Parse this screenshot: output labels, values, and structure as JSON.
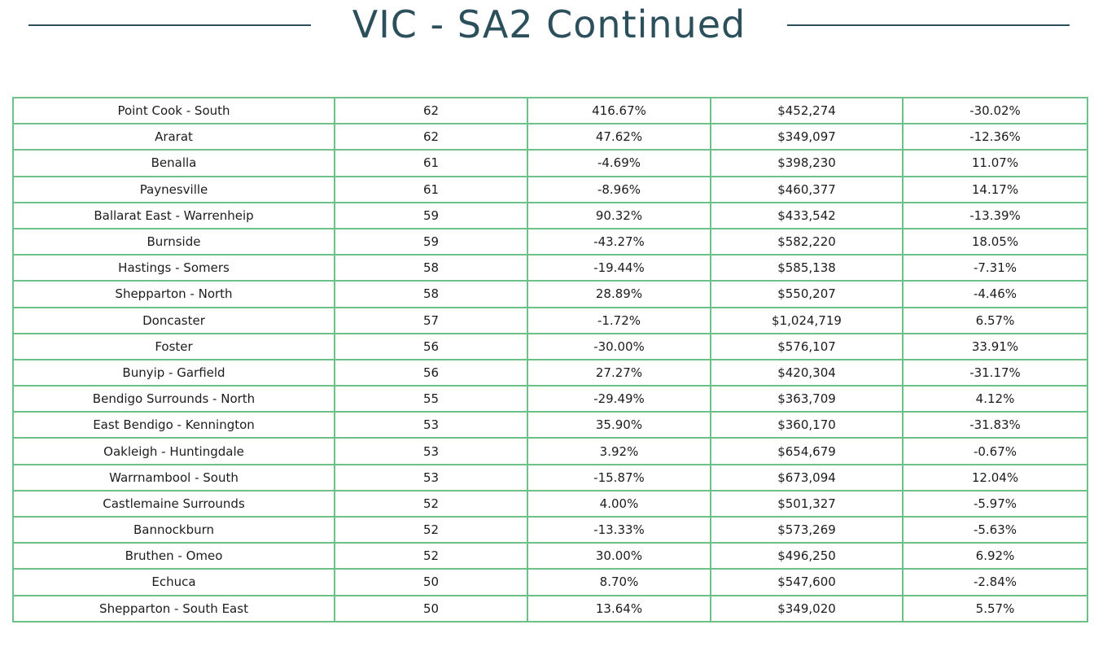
{
  "header": {
    "title": "VIC - SA2 Continued"
  },
  "table": {
    "rows": [
      [
        "Point Cook - South",
        "62",
        "416.67%",
        "$452,274",
        "-30.02%"
      ],
      [
        "Ararat",
        "62",
        "47.62%",
        "$349,097",
        "-12.36%"
      ],
      [
        "Benalla",
        "61",
        "-4.69%",
        "$398,230",
        "11.07%"
      ],
      [
        "Paynesville",
        "61",
        "-8.96%",
        "$460,377",
        "14.17%"
      ],
      [
        "Ballarat East - Warrenheip",
        "59",
        "90.32%",
        "$433,542",
        "-13.39%"
      ],
      [
        "Burnside",
        "59",
        "-43.27%",
        "$582,220",
        "18.05%"
      ],
      [
        "Hastings - Somers",
        "58",
        "-19.44%",
        "$585,138",
        "-7.31%"
      ],
      [
        "Shepparton - North",
        "58",
        "28.89%",
        "$550,207",
        "-4.46%"
      ],
      [
        "Doncaster",
        "57",
        "-1.72%",
        "$1,024,719",
        "6.57%"
      ],
      [
        "Foster",
        "56",
        "-30.00%",
        "$576,107",
        "33.91%"
      ],
      [
        "Bunyip - Garfield",
        "56",
        "27.27%",
        "$420,304",
        "-31.17%"
      ],
      [
        "Bendigo Surrounds - North",
        "55",
        "-29.49%",
        "$363,709",
        "4.12%"
      ],
      [
        "East Bendigo - Kennington",
        "53",
        "35.90%",
        "$360,170",
        "-31.83%"
      ],
      [
        "Oakleigh - Huntingdale",
        "53",
        "3.92%",
        "$654,679",
        "-0.67%"
      ],
      [
        "Warrnambool - South",
        "53",
        "-15.87%",
        "$673,094",
        "12.04%"
      ],
      [
        "Castlemaine Surrounds",
        "52",
        "4.00%",
        "$501,327",
        "-5.97%"
      ],
      [
        "Bannockburn",
        "52",
        "-13.33%",
        "$573,269",
        "-5.63%"
      ],
      [
        "Bruthen - Omeo",
        "52",
        "30.00%",
        "$496,250",
        "6.92%"
      ],
      [
        "Echuca",
        "50",
        "8.70%",
        "$547,600",
        "-2.84%"
      ],
      [
        "Shepparton - South East",
        "50",
        "13.64%",
        "$349,020",
        "5.57%"
      ]
    ]
  },
  "colors": {
    "title": "#2c4f5c",
    "rule": "#2c4f5c",
    "table_border": "#6cc088"
  }
}
